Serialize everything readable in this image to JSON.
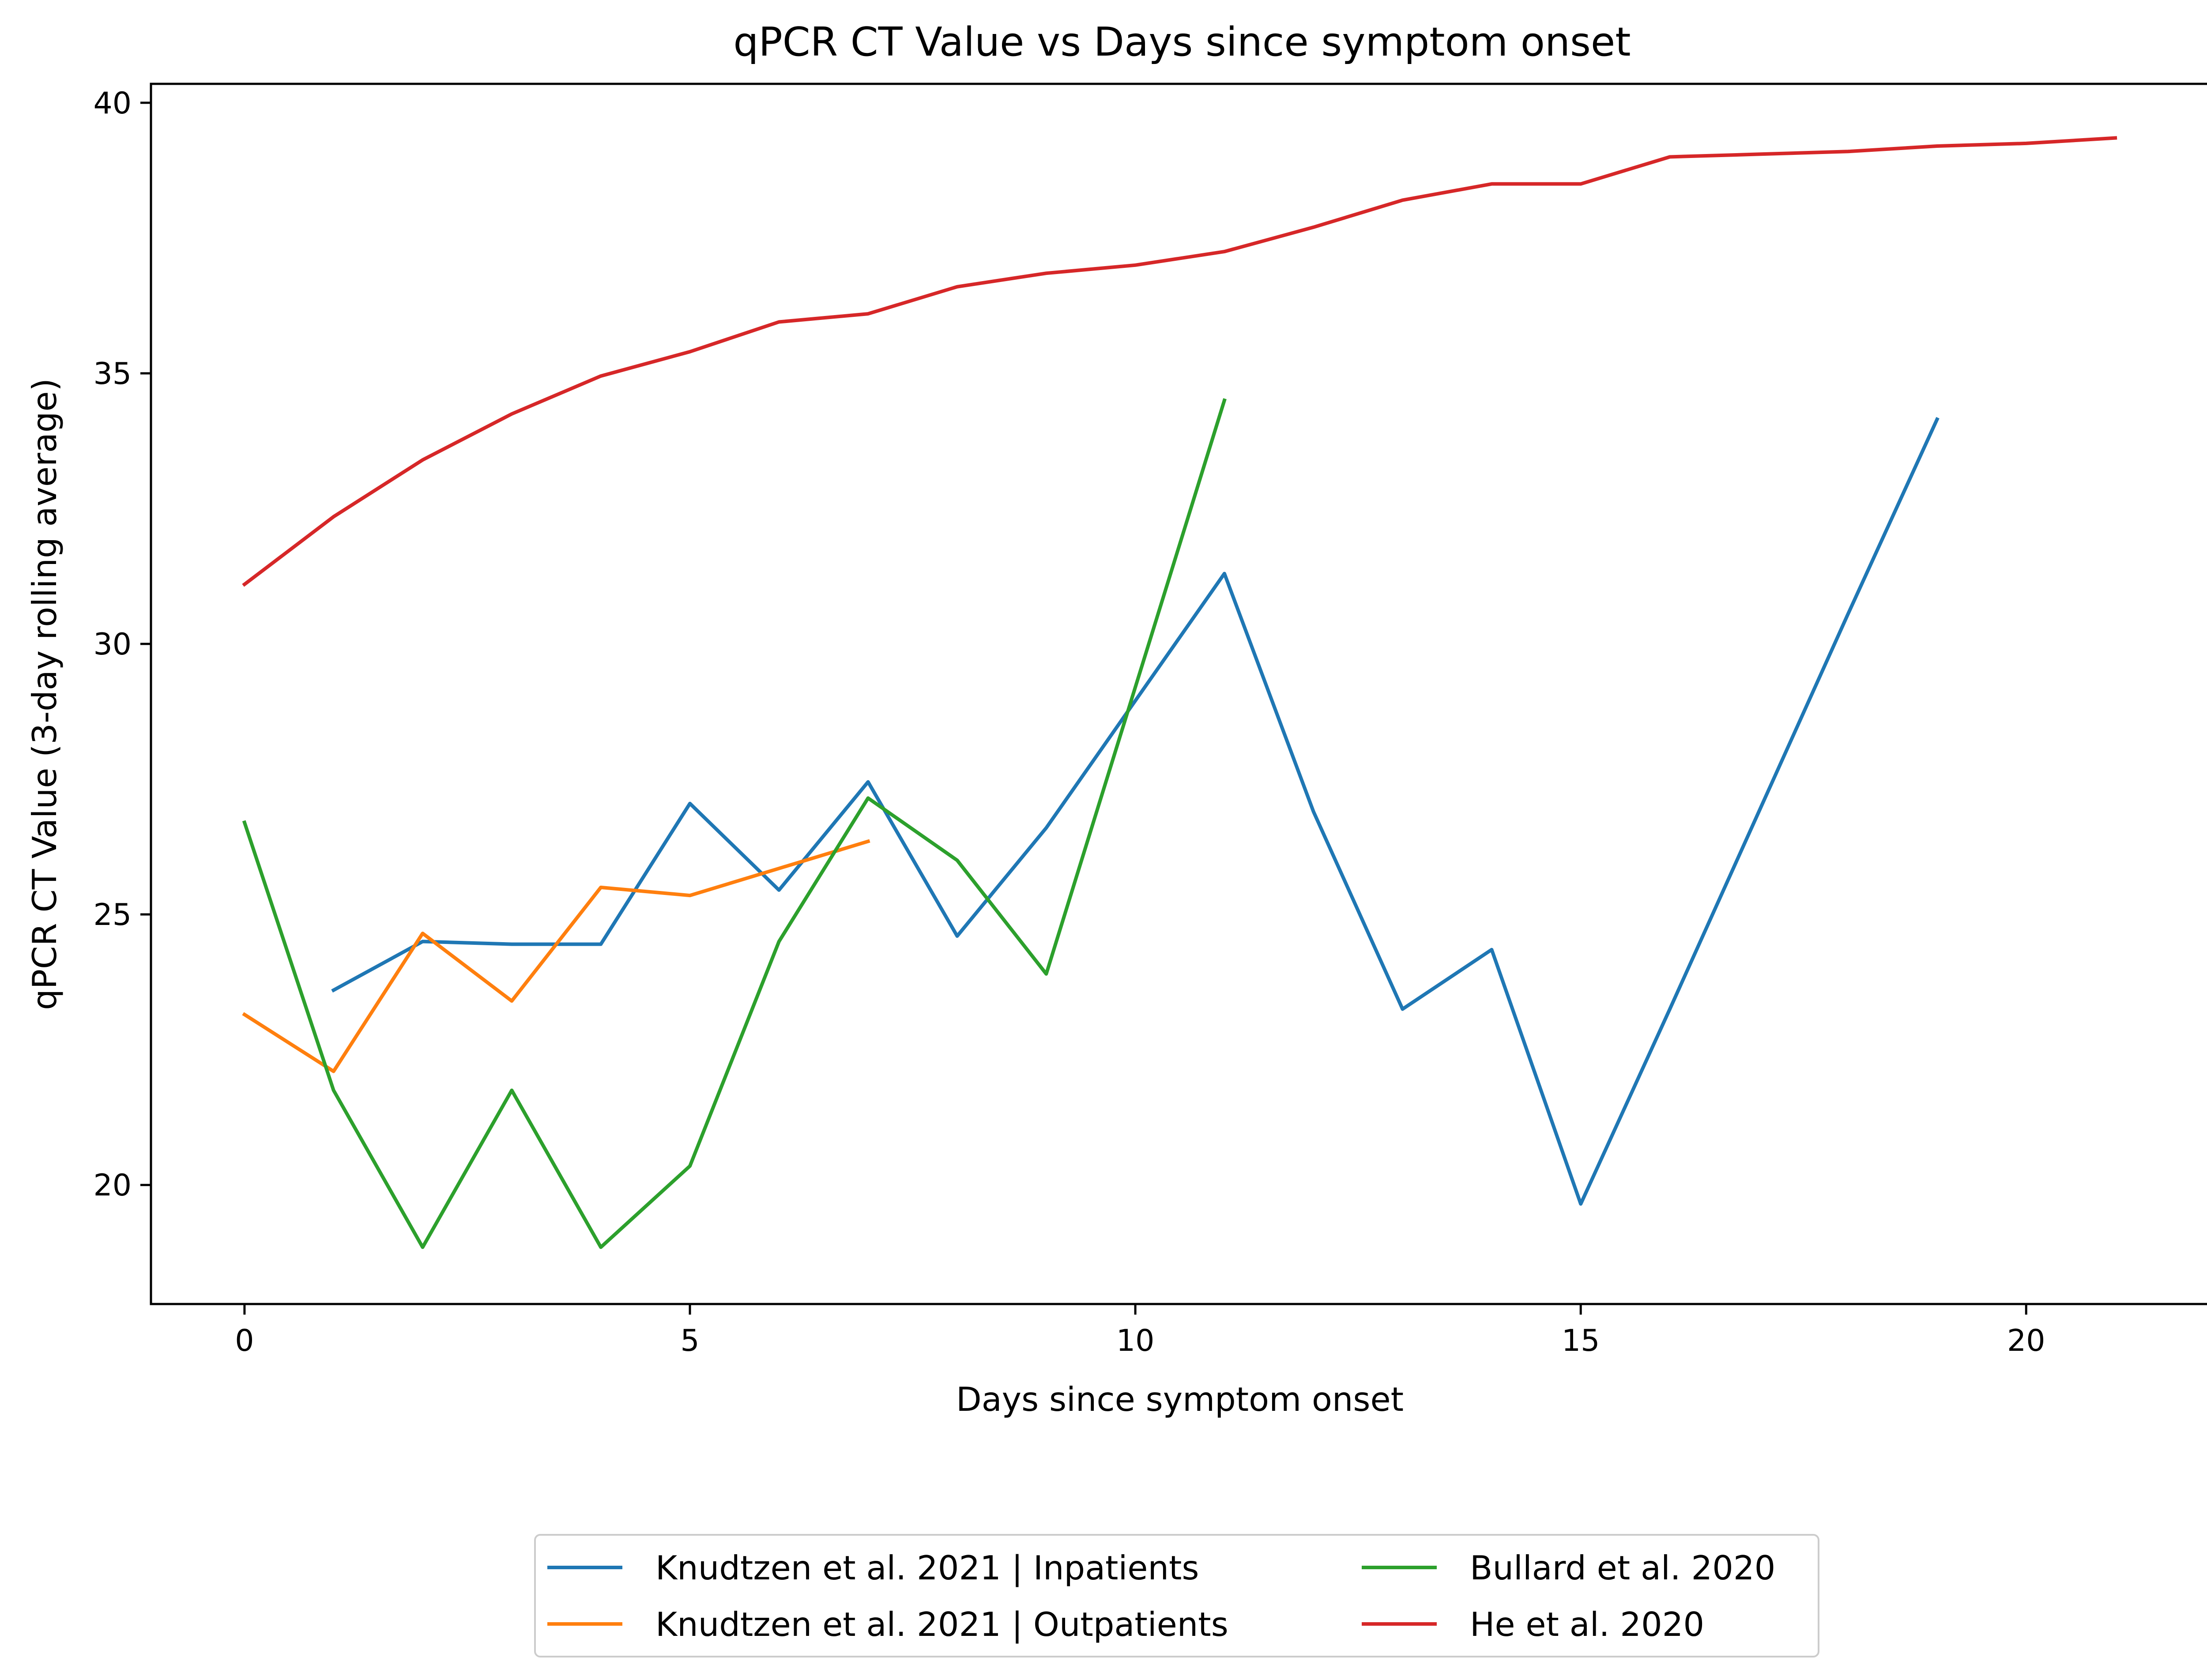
{
  "chart_data": {
    "type": "line",
    "title": "qPCR CT Value vs Days since symptom onset",
    "xlabel": "Days since symptom onset",
    "ylabel": "qPCR CT Value (3-day rolling average)",
    "xlim": [
      -1.05,
      22.05
    ],
    "ylim": [
      17.8,
      40.35
    ],
    "xticks": [
      0,
      5,
      10,
      15,
      20
    ],
    "xtick_labels": [
      "0",
      "5",
      "10",
      "15",
      "20"
    ],
    "yticks": [
      20,
      25,
      30,
      35,
      40
    ],
    "ytick_labels": [
      "20",
      "25",
      "30",
      "35",
      "40"
    ],
    "grid": false,
    "legend": {
      "position": "below chart",
      "columns": 2
    },
    "series": [
      {
        "name": "Knudtzen et al. 2021 | Inpatients",
        "color": "#1f77b4",
        "x": [
          1,
          2,
          3,
          4,
          5,
          6,
          7,
          8,
          9,
          10,
          11,
          12,
          13,
          14,
          15,
          16,
          17,
          18,
          19
        ],
        "y": [
          23.6,
          24.5,
          24.45,
          24.45,
          27.05,
          25.45,
          27.45,
          24.6,
          26.6,
          28.95,
          31.3,
          26.9,
          23.25,
          24.35,
          19.65,
          23.25,
          26.9,
          30.55,
          34.15
        ]
      },
      {
        "name": "Knudtzen et al. 2021 | Outpatients",
        "color": "#ff7f0e",
        "x": [
          0,
          1,
          2,
          3,
          4,
          5,
          6,
          7
        ],
        "y": [
          23.15,
          22.1,
          24.65,
          23.4,
          25.5,
          25.35,
          25.85,
          26.35
        ]
      },
      {
        "name": "Bullard et al. 2020",
        "color": "#2ca02c",
        "x": [
          0,
          1,
          2,
          3,
          4,
          5,
          6,
          7,
          8,
          9,
          10,
          11
        ],
        "y": [
          26.7,
          21.75,
          18.85,
          21.75,
          18.85,
          20.35,
          24.5,
          27.15,
          26.0,
          23.9,
          29.2,
          34.5
        ]
      },
      {
        "name": "He et al. 2020",
        "color": "#d62728",
        "x": [
          0,
          1,
          2,
          3,
          4,
          5,
          6,
          7,
          8,
          9,
          10,
          11,
          12,
          13,
          14,
          15,
          16,
          17,
          18,
          19,
          20,
          21
        ],
        "y": [
          31.1,
          32.35,
          33.4,
          34.25,
          34.95,
          35.4,
          35.95,
          36.1,
          36.6,
          36.85,
          37.0,
          37.25,
          37.7,
          38.2,
          38.5,
          38.5,
          39.0,
          39.05,
          39.1,
          39.2,
          39.25,
          39.35
        ]
      }
    ]
  }
}
